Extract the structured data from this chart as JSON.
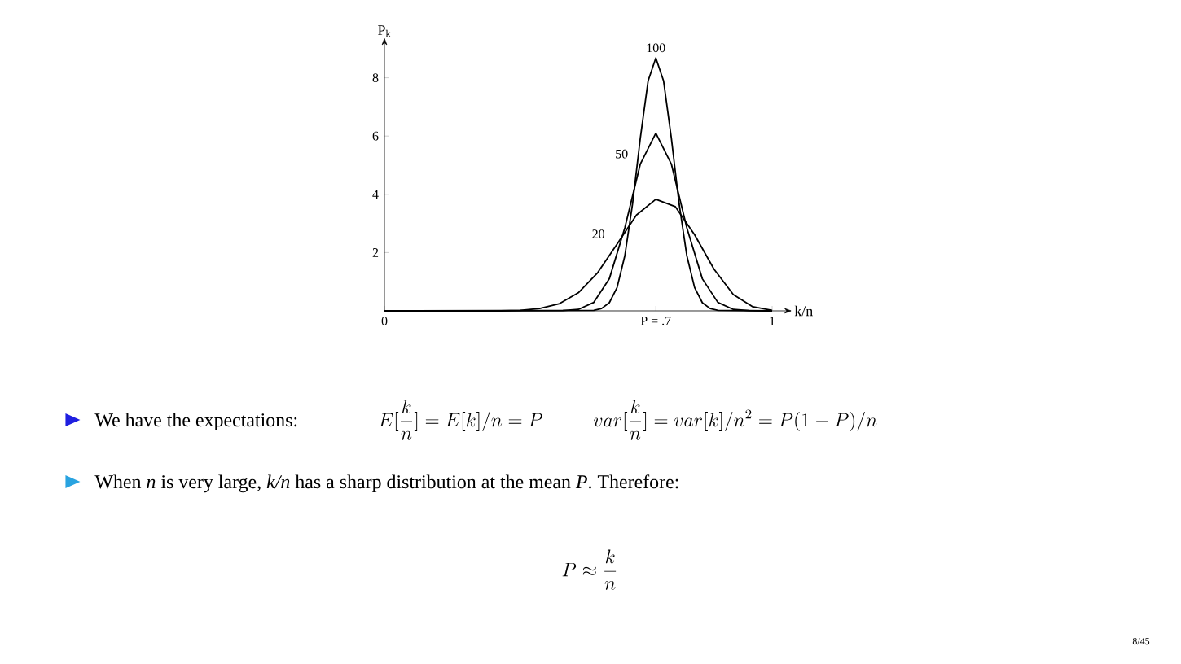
{
  "chart_data": {
    "type": "line",
    "xlabel": "k/n",
    "ylabel": "P$_{k}$",
    "xlim": [
      0,
      1.03
    ],
    "ylim": [
      0,
      9.1
    ],
    "xticks": [
      0,
      {
        "value": 0.7,
        "label": "P = .7"
      },
      1
    ],
    "yticks": [
      2,
      4,
      6,
      8
    ],
    "series": [
      {
        "name": "20",
        "color": "#000000",
        "x": [
          0,
          0.3,
          0.35,
          0.4,
          0.45,
          0.5,
          0.55,
          0.6,
          0.65,
          0.7,
          0.75,
          0.8,
          0.85,
          0.9,
          0.95,
          1.0
        ],
        "values": [
          0,
          0,
          0.02,
          0.08,
          0.24,
          0.62,
          1.31,
          2.29,
          3.29,
          3.83,
          3.58,
          2.61,
          1.43,
          0.56,
          0.14,
          0.02
        ]
      },
      {
        "name": "50",
        "color": "#000000",
        "x": [
          0,
          0.46,
          0.5,
          0.54,
          0.58,
          0.62,
          0.66,
          0.7,
          0.74,
          0.78,
          0.82,
          0.86,
          0.9,
          0.94,
          1.0
        ],
        "values": [
          0,
          0.01,
          0.05,
          0.29,
          1.1,
          2.85,
          5.04,
          6.1,
          5.04,
          2.85,
          1.1,
          0.29,
          0.05,
          0.01,
          0
        ]
      },
      {
        "name": "100",
        "color": "#000000",
        "x": [
          0,
          0.54,
          0.56,
          0.58,
          0.6,
          0.62,
          0.64,
          0.66,
          0.68,
          0.7,
          0.72,
          0.74,
          0.76,
          0.78,
          0.8,
          0.82,
          0.84,
          0.86,
          1.0
        ],
        "values": [
          0,
          0.02,
          0.08,
          0.28,
          0.8,
          1.89,
          3.68,
          5.93,
          7.89,
          8.68,
          7.89,
          5.93,
          3.68,
          1.89,
          0.8,
          0.28,
          0.08,
          0.02,
          0
        ]
      }
    ],
    "annotations": [
      "We have the expectations:",
      "E[\\frac{k}{n}] = E[k]/n = P",
      "var[\\frac{k}{n}] = var[k]/n^2 = P(1-P)/n",
      "When *n* is very large, *k/n* has a sharp distribution at the mean *P*. Therefore:",
      "P \\approx \\frac{k}{n}",
      "8/45"
    ]
  }
}
